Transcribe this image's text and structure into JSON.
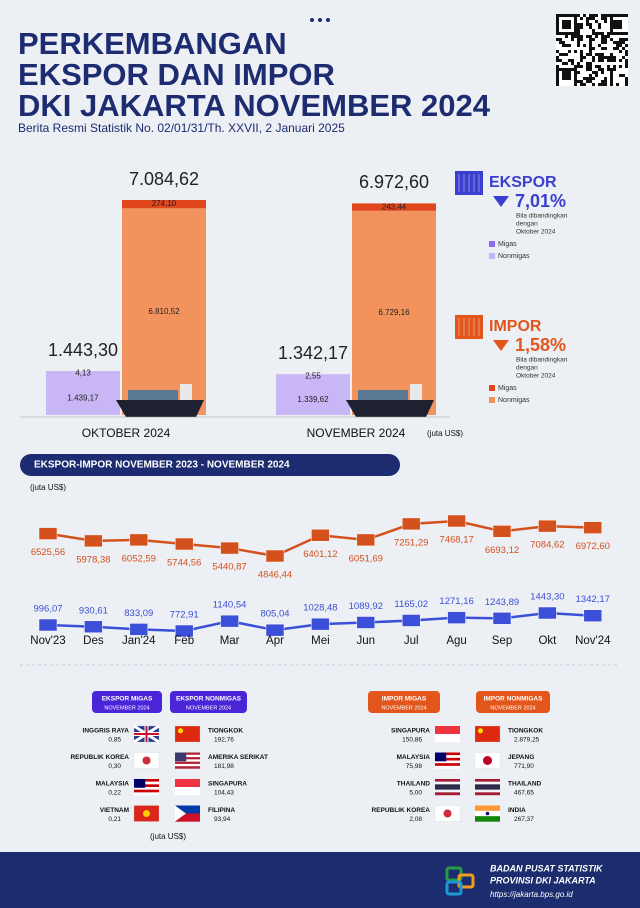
{
  "header": {
    "title_lines": [
      "PERKEMBANGAN",
      "EKSPOR DAN IMPOR",
      "DKI JAKARTA NOVEMBER 2024"
    ],
    "subtitle": "Berita Resmi Statistik No. 02/01/31/Th. XXVII, 2 Januari 2025"
  },
  "chart_data": [
    {
      "type": "bar",
      "stacked": true,
      "categories": [
        "OKTOBER 2024",
        "NOVEMBER 2024"
      ],
      "unit": "(juta US$)",
      "groups": {
        "ekspor": {
          "totals": [
            1443.3,
            1342.17
          ],
          "total_labels": [
            "1.443,30",
            "1.342,17"
          ],
          "series": [
            {
              "name": "Migas",
              "color": "#8a6cf0",
              "values": [
                4.13,
                2.55
              ],
              "value_labels": [
                "4,13",
                "2,55"
              ]
            },
            {
              "name": "Nonmigas",
              "color": "#c9b6f6",
              "values": [
                1439.17,
                1339.62
              ],
              "value_labels": [
                "1.439,17",
                "1.339,62"
              ]
            }
          ]
        },
        "impor": {
          "totals": [
            7084.62,
            6972.6
          ],
          "total_labels": [
            "7.084,62",
            "6.972,60"
          ],
          "series": [
            {
              "name": "Migas",
              "color": "#e2461c",
              "values": [
                274.1,
                243.44
              ],
              "value_labels": [
                "274,10",
                "243,44"
              ]
            },
            {
              "name": "Nonmigas",
              "color": "#f2925c",
              "values": [
                6810.52,
                6729.16
              ],
              "value_labels": [
                "6.810,52",
                "6.729,16"
              ]
            }
          ]
        }
      }
    },
    {
      "type": "line",
      "title": "EKSPOR-IMPOR NOVEMBER 2023 - NOVEMBER 2024",
      "unit": "(juta US$)",
      "categories": [
        "Nov'23",
        "Des",
        "Jan'24",
        "Feb",
        "Mar",
        "Apr",
        "Mei",
        "Jun",
        "Jul",
        "Agu",
        "Sep",
        "Okt",
        "Nov'24"
      ],
      "series": [
        {
          "color": "#d4501c",
          "values": [
            6525.56,
            5978.38,
            6052.59,
            5744.56,
            5440.87,
            4846.44,
            6401.12,
            6051.69,
            7251.29,
            7468.17,
            6693.12,
            7084.62,
            6972.6
          ],
          "value_labels": [
            "6525,56",
            "5978,38",
            "6052,59",
            "5744,56",
            "5440,87",
            "4846,44",
            "6401,12",
            "6051,69",
            "7251,29",
            "7468,17",
            "6693,12",
            "7084,62",
            "6972,60"
          ]
        },
        {
          "color": "#3b4fd8",
          "values": [
            996.07,
            930.61,
            833.09,
            772.91,
            1140.54,
            805.04,
            1028.48,
            1089.92,
            1165.02,
            1271.16,
            1243.89,
            1443.3,
            1342.17
          ],
          "value_labels": [
            "996,07",
            "930,61",
            "833,09",
            "772,91",
            "1140,54",
            "805,04",
            "1028,48",
            "1089,92",
            "1165,02",
            "1271,16",
            "1243,89",
            "1443,30",
            "1342,17"
          ]
        }
      ]
    }
  ],
  "summary": {
    "ekspor": {
      "label": "EKSPOR",
      "change": "7,01%",
      "note": [
        "Bila dibandingkan",
        "dengan",
        "Oktober 2024"
      ]
    },
    "impor": {
      "label": "IMPOR",
      "change": "1,58%",
      "note": [
        "Bila dibandingkan",
        "dengan",
        "Oktober 2024"
      ]
    }
  },
  "partners": [
    {
      "title": "EKSPOR MIGAS",
      "period": "NOVEMBER 2024",
      "items": [
        {
          "country": "INGGRIS RAYA",
          "value": "0,85"
        },
        {
          "country": "REPUBLIK KOREA",
          "value": "0,30"
        },
        {
          "country": "MALAYSIA",
          "value": "0,22"
        },
        {
          "country": "VIETNAM",
          "value": "0,21"
        }
      ]
    },
    {
      "title": "EKSPOR NONMIGAS",
      "period": "NOVEMBER 2024",
      "items": [
        {
          "country": "TIONGKOK",
          "value": "192,76"
        },
        {
          "country": "AMERIKA SERIKAT",
          "value": "181,98"
        },
        {
          "country": "SINGAPURA",
          "value": "104,43"
        },
        {
          "country": "FILIPINA",
          "value": "93,94"
        }
      ]
    },
    {
      "title": "IMPOR MIGAS",
      "period": "NOVEMBER 2024",
      "items": [
        {
          "country": "SINGAPURA",
          "value": "150,86"
        },
        {
          "country": "MALAYSIA",
          "value": "75,98"
        },
        {
          "country": "THAILAND",
          "value": "5,00"
        },
        {
          "country": "REPUBLIK KOREA",
          "value": "2,08"
        }
      ]
    },
    {
      "title": "IMPOR NONMIGAS",
      "period": "NOVEMBER 2024",
      "items": [
        {
          "country": "TIONGKOK",
          "value": "2.879,25"
        },
        {
          "country": "JEPANG",
          "value": "771,90"
        },
        {
          "country": "THAILAND",
          "value": "467,65"
        },
        {
          "country": "INDIA",
          "value": "267,37"
        }
      ]
    }
  ],
  "partners_unit": "(juta US$)",
  "footer": {
    "lines": [
      "BADAN PUSAT STATISTIK",
      "PROVINSI DKI JAKARTA"
    ],
    "url": "https://jakarta.bps.go.id"
  }
}
